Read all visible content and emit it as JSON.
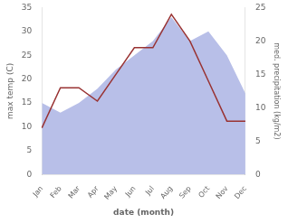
{
  "chart_data": {
    "type": "line",
    "categories": [
      "Jan",
      "Feb",
      "Mar",
      "Apr",
      "May",
      "Jun",
      "Jul",
      "Aug",
      "Sep",
      "Oct",
      "Nov",
      "Dec"
    ],
    "xlabel": "date (month)",
    "ylabel": "max temp (C)",
    "y2label": "med. precipitation (kg/m2)",
    "series": [
      {
        "type": "area",
        "color": "#b8bfe8",
        "values": [
          15,
          13,
          15,
          18,
          22,
          25,
          28,
          33,
          28,
          30,
          25,
          17
        ]
      },
      {
        "type": "line",
        "color": "#993333",
        "axis": "y2",
        "values": [
          7,
          13,
          13,
          11,
          15,
          19,
          19,
          24,
          20,
          14,
          8,
          8
        ]
      }
    ],
    "ylim": [
      0,
      35
    ],
    "yticks": [
      0,
      5,
      10,
      15,
      20,
      25,
      30,
      35
    ],
    "y2lim": [
      0,
      25
    ],
    "y2ticks": [
      0,
      5,
      10,
      15,
      20,
      25
    ],
    "grid": false
  }
}
